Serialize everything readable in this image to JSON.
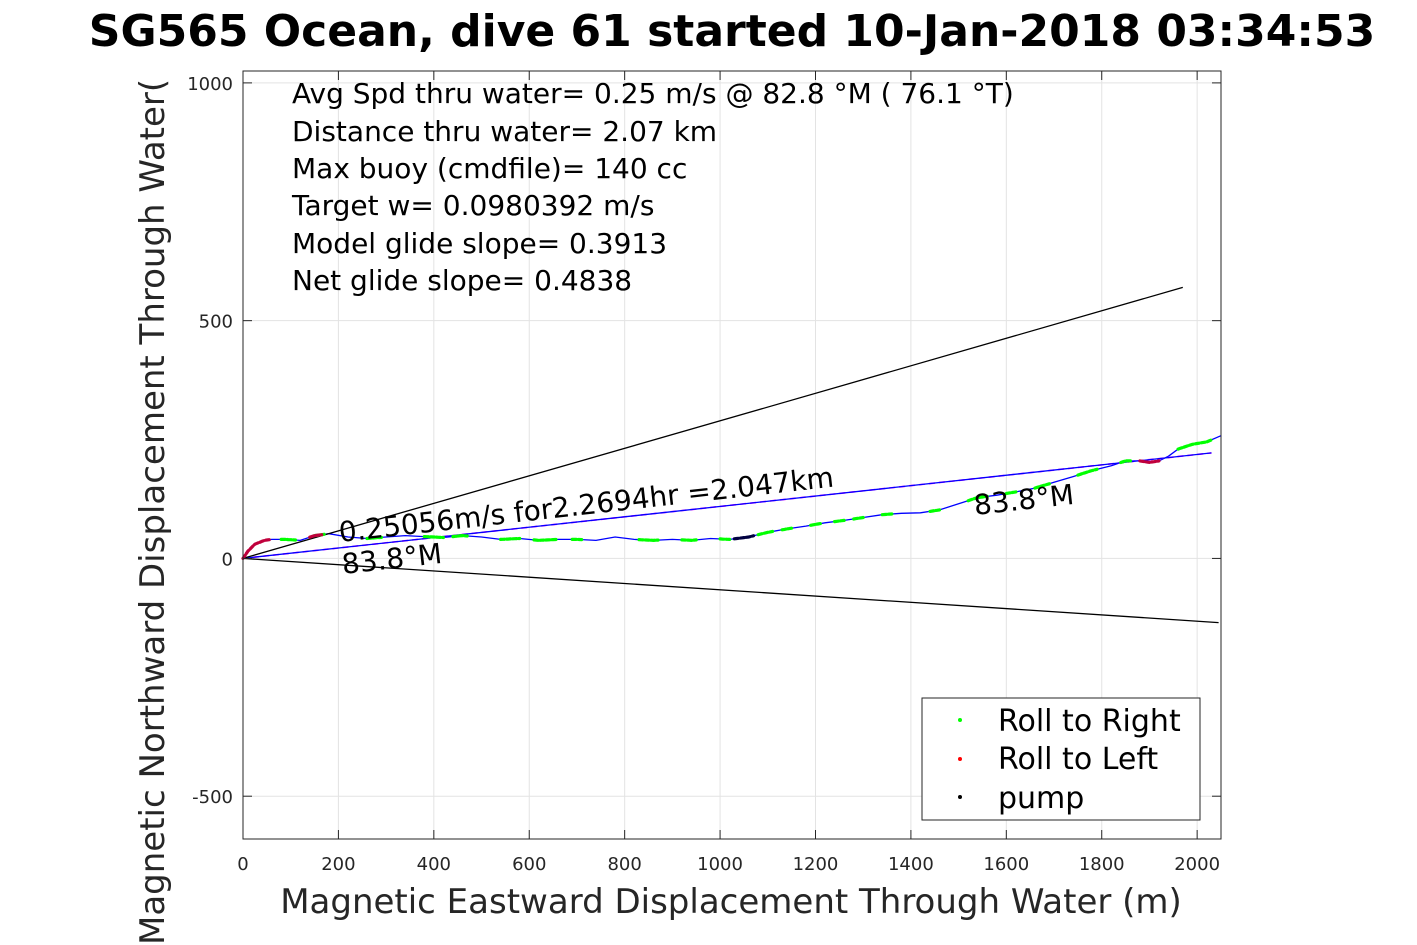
{
  "chart_data": {
    "type": "line",
    "title": "SG565 Ocean, dive 61 started 10-Jan-2018 03:34:53",
    "xlabel": "Magnetic Eastward Displacement Through Water (m)",
    "ylabel": "Magnetic Northward Displacement Through Water(",
    "xlim": [
      0,
      2050
    ],
    "ylim": [
      -590,
      1025
    ],
    "xticks": [
      0,
      200,
      400,
      600,
      800,
      1000,
      1200,
      1400,
      1600,
      1800,
      2000
    ],
    "yticks": [
      -500,
      0,
      500,
      1000
    ],
    "xtick_labels": [
      "0",
      "200",
      "400",
      "600",
      "800",
      "1000",
      "1200",
      "1400",
      "1600",
      "1800",
      "2000"
    ],
    "ytick_labels": [
      "-500",
      "0",
      "500",
      "1000"
    ],
    "grid": true,
    "annotations": [
      "Avg Spd thru water=  0.25 m/s @  82.8 °M ( 76.1 °T)",
      "Distance thru water=  2.07 km",
      "Max buoy (cmdfile)= 140 cc",
      "Target w= 0.0980392 m/s",
      "Model glide slope= 0.3913",
      "Net glide slope= 0.4838"
    ],
    "line_label": "0.25056m/s for2.2694hr =2.047km",
    "heading_labels": [
      "83.8°M",
      "83.8°M"
    ],
    "legend": {
      "position": "bottom-right",
      "entries": [
        {
          "label": "Roll to Right",
          "color": "#00ff00"
        },
        {
          "label": "Roll to Left",
          "color": "#ff0000"
        },
        {
          "label": "pump",
          "color": "#000000"
        }
      ]
    },
    "series": [
      {
        "style": "track",
        "color": "#0000ff",
        "points": [
          [
            0,
            0
          ],
          [
            10,
            15
          ],
          [
            25,
            30
          ],
          [
            45,
            38
          ],
          [
            60,
            40
          ],
          [
            90,
            40
          ],
          [
            120,
            38
          ],
          [
            150,
            48
          ],
          [
            180,
            52
          ],
          [
            220,
            45
          ],
          [
            260,
            42
          ],
          [
            300,
            45
          ],
          [
            340,
            48
          ],
          [
            380,
            46
          ],
          [
            420,
            44
          ],
          [
            460,
            48
          ],
          [
            500,
            45
          ],
          [
            540,
            40
          ],
          [
            580,
            42
          ],
          [
            620,
            38
          ],
          [
            660,
            40
          ],
          [
            700,
            40
          ],
          [
            740,
            38
          ],
          [
            780,
            45
          ],
          [
            820,
            40
          ],
          [
            860,
            38
          ],
          [
            900,
            40
          ],
          [
            940,
            38
          ],
          [
            980,
            42
          ],
          [
            1020,
            40
          ],
          [
            1060,
            45
          ],
          [
            1100,
            55
          ],
          [
            1140,
            62
          ],
          [
            1180,
            68
          ],
          [
            1220,
            75
          ],
          [
            1260,
            80
          ],
          [
            1300,
            86
          ],
          [
            1340,
            92
          ],
          [
            1380,
            95
          ],
          [
            1420,
            96
          ],
          [
            1460,
            102
          ],
          [
            1500,
            115
          ],
          [
            1540,
            128
          ],
          [
            1580,
            133
          ],
          [
            1620,
            140
          ],
          [
            1660,
            148
          ],
          [
            1700,
            160
          ],
          [
            1740,
            172
          ],
          [
            1780,
            185
          ],
          [
            1820,
            195
          ],
          [
            1850,
            205
          ],
          [
            1880,
            205
          ],
          [
            1900,
            202
          ],
          [
            1920,
            205
          ],
          [
            1940,
            215
          ],
          [
            1960,
            230
          ],
          [
            1990,
            240
          ],
          [
            2020,
            245
          ],
          [
            2050,
            258
          ]
        ]
      },
      {
        "style": "dashed",
        "color": "#ff00ff",
        "points": [
          [
            0,
            0
          ],
          [
            2030,
            222
          ]
        ]
      },
      {
        "style": "solid",
        "color": "#0000ff",
        "points": [
          [
            0,
            0
          ],
          [
            2030,
            222
          ]
        ]
      },
      {
        "style": "solid",
        "color": "#000000",
        "points": [
          [
            0,
            0
          ],
          [
            1970,
            570
          ]
        ]
      },
      {
        "style": "solid",
        "color": "#000000",
        "points": [
          [
            0,
            0
          ],
          [
            2045,
            -135
          ]
        ]
      }
    ],
    "roll_right_segments": [
      [
        80,
        110
      ],
      [
        150,
        170
      ],
      [
        260,
        290
      ],
      [
        380,
        420
      ],
      [
        440,
        470
      ],
      [
        540,
        580
      ],
      [
        610,
        660
      ],
      [
        690,
        710
      ],
      [
        830,
        870
      ],
      [
        920,
        950
      ],
      [
        1000,
        1020
      ],
      [
        1080,
        1110
      ],
      [
        1130,
        1150
      ],
      [
        1190,
        1210
      ],
      [
        1240,
        1260
      ],
      [
        1280,
        1300
      ],
      [
        1340,
        1360
      ],
      [
        1440,
        1460
      ],
      [
        1520,
        1560
      ],
      [
        1600,
        1620
      ],
      [
        1660,
        1690
      ],
      [
        1750,
        1790
      ],
      [
        1840,
        1860
      ],
      [
        1960,
        2030
      ]
    ],
    "roll_left_segments": [
      [
        0,
        55
      ],
      [
        140,
        165
      ],
      [
        1880,
        1920
      ]
    ],
    "pump_segments": [
      [
        1030,
        1070
      ]
    ]
  }
}
